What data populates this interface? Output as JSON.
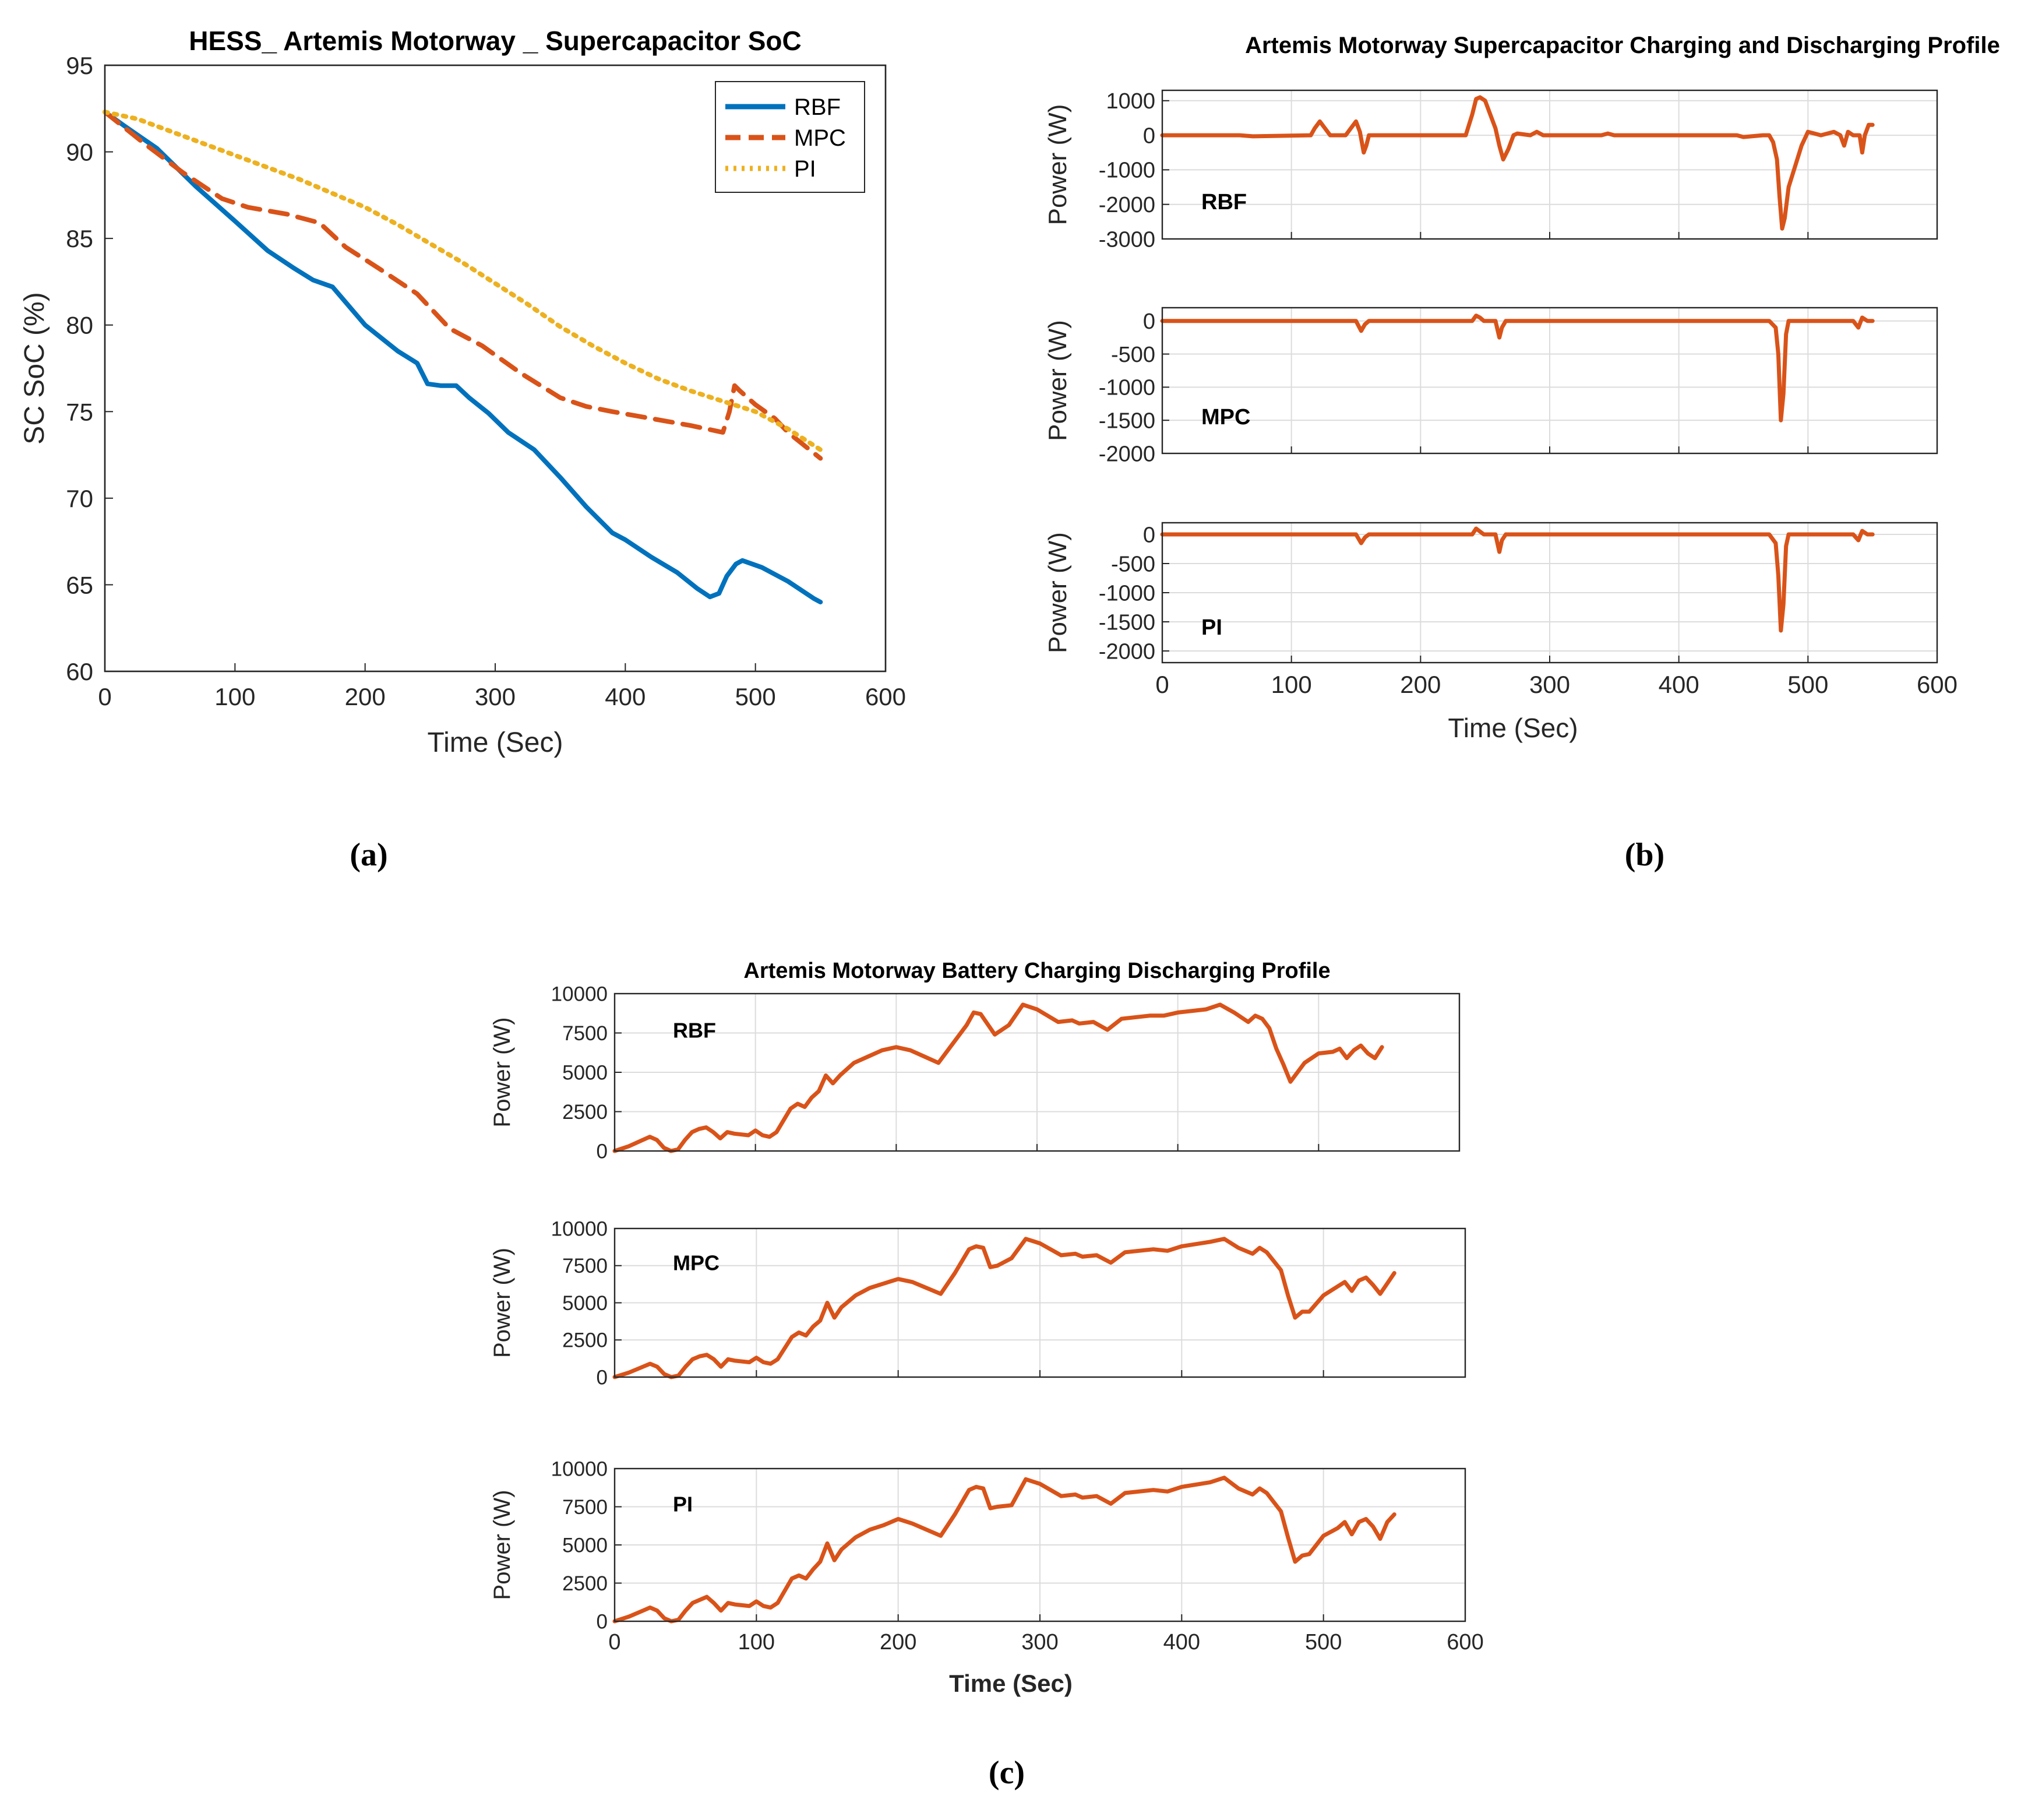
{
  "captions": {
    "a": "(a)",
    "b": "(b)",
    "c": "(c)"
  },
  "colors": {
    "rbf": "#0072BD",
    "mpc": "#D95319",
    "pi": "#EDB120",
    "profile": "#D95319"
  },
  "chart_data": [
    {
      "id": "a",
      "type": "line",
      "title": "HESS_ Artemis Motorway _ Supercapacitor SoC",
      "xlabel": "Time (Sec)",
      "ylabel": "SC SoC (%)",
      "xlim": [
        0,
        600
      ],
      "ylim": [
        60,
        95
      ],
      "xticks": [
        0,
        100,
        200,
        300,
        400,
        500,
        600
      ],
      "yticks": [
        60,
        65,
        70,
        75,
        80,
        85,
        90,
        95
      ],
      "grid": true,
      "legend": "top-right",
      "series": [
        {
          "name": "RBF",
          "color": "#0072BD",
          "dash": "solid",
          "x": [
            0,
            15,
            40,
            70,
            100,
            125,
            145,
            160,
            175,
            200,
            225,
            240,
            248,
            258,
            270,
            280,
            295,
            310,
            330,
            350,
            370,
            390,
            400,
            420,
            440,
            455,
            465,
            472,
            478,
            485,
            490,
            505,
            515,
            525,
            535,
            545,
            550
          ],
          "y": [
            92.3,
            91.5,
            90.2,
            88.0,
            86.0,
            84.3,
            83.3,
            82.6,
            82.2,
            80.0,
            78.5,
            77.8,
            76.6,
            76.5,
            76.5,
            75.8,
            74.9,
            73.8,
            72.8,
            71.2,
            69.5,
            68.0,
            67.6,
            66.6,
            65.7,
            64.8,
            64.3,
            64.5,
            65.5,
            66.2,
            66.4,
            66.0,
            65.6,
            65.2,
            64.7,
            64.2,
            64.0
          ]
        },
        {
          "name": "MPC",
          "color": "#D95319",
          "dash": "dash",
          "x": [
            0,
            30,
            60,
            90,
            110,
            140,
            165,
            185,
            210,
            240,
            265,
            290,
            320,
            350,
            370,
            390,
            420,
            450,
            475,
            480,
            484,
            488,
            500,
            515,
            525,
            535,
            550
          ],
          "y": [
            92.3,
            90.5,
            88.8,
            87.3,
            86.8,
            86.4,
            85.9,
            84.5,
            83.3,
            81.8,
            79.8,
            78.8,
            77.2,
            75.8,
            75.3,
            75.0,
            74.6,
            74.2,
            73.8,
            75.0,
            76.5,
            76.2,
            75.4,
            74.6,
            73.8,
            73.2,
            72.3
          ]
        },
        {
          "name": "PI",
          "color": "#EDB120",
          "dash": "dot",
          "x": [
            0,
            25,
            50,
            75,
            100,
            125,
            150,
            175,
            200,
            225,
            250,
            275,
            300,
            325,
            350,
            375,
            400,
            425,
            450,
            475,
            500,
            525,
            550
          ],
          "y": [
            92.3,
            91.9,
            91.2,
            90.5,
            89.8,
            89.1,
            88.4,
            87.6,
            86.8,
            85.8,
            84.7,
            83.6,
            82.4,
            81.2,
            79.9,
            78.8,
            77.8,
            76.9,
            76.2,
            75.6,
            75.0,
            74.0,
            72.8
          ]
        }
      ]
    },
    {
      "id": "b",
      "type": "line",
      "title": "Artemis Motorway Supercapacitor Charging and Discharging Profile",
      "xlabel": "Time (Sec)",
      "ylabel": "Power (W)",
      "xlim": [
        0,
        600
      ],
      "xticks": [
        0,
        100,
        200,
        300,
        400,
        500,
        600
      ],
      "grid": true,
      "subplots": [
        {
          "label": "RBF",
          "ylim": [
            -3000,
            1300
          ],
          "yticks": [
            -3000,
            -2000,
            -1000,
            0,
            1000
          ],
          "color": "#D95319",
          "x": [
            0,
            60,
            70,
            115,
            118,
            122,
            126,
            130,
            142,
            146,
            150,
            153,
            156,
            158,
            160,
            235,
            240,
            243,
            246,
            250,
            254,
            258,
            261,
            264,
            268,
            272,
            275,
            285,
            290,
            295,
            300,
            340,
            345,
            350,
            445,
            450,
            465,
            470,
            473,
            476,
            478,
            480,
            482,
            485,
            490,
            495,
            500,
            505,
            510,
            520,
            525,
            528,
            531,
            535,
            540,
            542,
            544,
            547,
            550
          ],
          "y": [
            0,
            0,
            -30,
            0,
            200,
            400,
            200,
            0,
            0,
            200,
            400,
            100,
            -500,
            -300,
            0,
            0,
            600,
            1050,
            1100,
            1000,
            600,
            200,
            -300,
            -700,
            -400,
            0,
            50,
            0,
            100,
            0,
            0,
            0,
            50,
            0,
            0,
            -50,
            0,
            0,
            -200,
            -700,
            -1800,
            -2700,
            -2400,
            -1500,
            -900,
            -300,
            100,
            50,
            0,
            100,
            0,
            -300,
            100,
            0,
            0,
            -500,
            0,
            300,
            300
          ]
        },
        {
          "label": "MPC",
          "ylim": [
            -2000,
            200
          ],
          "yticks": [
            -2000,
            -1500,
            -1000,
            -500,
            0
          ],
          "color": "#D95319",
          "x": [
            0,
            150,
            154,
            157,
            160,
            240,
            243,
            246,
            249,
            258,
            261,
            263,
            266,
            470,
            475,
            477,
            479,
            481,
            483,
            485,
            490,
            535,
            539,
            542,
            546,
            550
          ],
          "y": [
            0,
            0,
            -150,
            -50,
            0,
            0,
            80,
            50,
            0,
            0,
            -250,
            -100,
            0,
            0,
            -100,
            -500,
            -1500,
            -1100,
            -200,
            0,
            0,
            0,
            -100,
            50,
            0,
            0
          ]
        },
        {
          "label": "PI",
          "ylim": [
            -2200,
            200
          ],
          "yticks": [
            -2000,
            -1500,
            -1000,
            -500,
            0
          ],
          "color": "#D95319",
          "x": [
            0,
            150,
            154,
            157,
            160,
            240,
            243,
            246,
            249,
            258,
            261,
            263,
            266,
            470,
            475,
            477,
            479,
            481,
            483,
            485,
            490,
            535,
            539,
            542,
            546,
            550
          ],
          "y": [
            0,
            0,
            -150,
            -50,
            0,
            0,
            100,
            50,
            0,
            0,
            -300,
            -100,
            0,
            0,
            -150,
            -700,
            -1650,
            -1200,
            -200,
            0,
            0,
            0,
            -100,
            60,
            0,
            0
          ]
        }
      ]
    },
    {
      "id": "c",
      "type": "line",
      "title": "Artemis Motorway Battery Charging Discharging Profile",
      "xlabel": "Time (Sec)",
      "ylabel": "Power (W)",
      "xlim": [
        0,
        600
      ],
      "xticks": [
        0,
        100,
        200,
        300,
        400,
        500,
        600
      ],
      "grid": true,
      "subplots": [
        {
          "label": "RBF",
          "ylim": [
            0,
            10000
          ],
          "yticks": [
            0,
            2500,
            5000,
            7500,
            10000
          ],
          "color": "#D95319",
          "x": [
            0,
            10,
            20,
            25,
            30,
            35,
            40,
            45,
            50,
            55,
            60,
            65,
            70,
            75,
            80,
            85,
            95,
            100,
            105,
            110,
            115,
            125,
            130,
            135,
            140,
            145,
            150,
            155,
            160,
            170,
            180,
            190,
            200,
            210,
            220,
            230,
            240,
            250,
            255,
            260,
            270,
            280,
            290,
            300,
            315,
            325,
            330,
            340,
            350,
            360,
            380,
            390,
            400,
            420,
            430,
            440,
            450,
            455,
            460,
            465,
            470,
            475,
            480,
            490,
            500,
            510,
            515,
            520,
            525,
            530,
            535,
            540,
            545
          ],
          "y": [
            0,
            300,
            700,
            900,
            700,
            200,
            0,
            100,
            700,
            1200,
            1400,
            1500,
            1200,
            800,
            1200,
            1100,
            1000,
            1300,
            1000,
            900,
            1200,
            2700,
            3000,
            2800,
            3400,
            3800,
            4800,
            4300,
            4800,
            5600,
            6000,
            6400,
            6600,
            6400,
            6000,
            5600,
            6800,
            8000,
            8800,
            8700,
            7400,
            8000,
            9300,
            9000,
            8200,
            8300,
            8100,
            8200,
            7700,
            8400,
            8600,
            8600,
            8800,
            9000,
            9300,
            8800,
            8200,
            8600,
            8400,
            7800,
            6500,
            5500,
            4400,
            5600,
            6200,
            6300,
            6500,
            5900,
            6400,
            6700,
            6200,
            5900,
            6600
          ]
        },
        {
          "label": "MPC",
          "ylim": [
            0,
            10000
          ],
          "yticks": [
            0,
            2500,
            5000,
            7500,
            10000
          ],
          "color": "#D95319",
          "x": [
            0,
            10,
            20,
            25,
            30,
            35,
            40,
            45,
            50,
            55,
            60,
            65,
            70,
            75,
            80,
            85,
            95,
            100,
            105,
            110,
            115,
            125,
            130,
            135,
            140,
            145,
            150,
            155,
            160,
            170,
            180,
            190,
            200,
            210,
            220,
            230,
            240,
            250,
            255,
            260,
            265,
            270,
            280,
            290,
            300,
            315,
            325,
            330,
            340,
            350,
            360,
            380,
            390,
            400,
            420,
            430,
            440,
            450,
            455,
            460,
            465,
            470,
            475,
            480,
            485,
            490,
            500,
            510,
            515,
            520,
            525,
            530,
            535,
            540,
            545,
            550
          ],
          "y": [
            0,
            300,
            700,
            900,
            700,
            200,
            0,
            100,
            700,
            1200,
            1400,
            1500,
            1200,
            700,
            1200,
            1100,
            1000,
            1300,
            1000,
            900,
            1200,
            2700,
            3000,
            2800,
            3400,
            3800,
            5000,
            4000,
            4700,
            5500,
            6000,
            6300,
            6600,
            6400,
            6000,
            5600,
            7000,
            8600,
            8800,
            8700,
            7400,
            7500,
            8000,
            9300,
            9000,
            8200,
            8300,
            8100,
            8200,
            7700,
            8400,
            8600,
            8500,
            8800,
            9100,
            9300,
            8700,
            8300,
            8700,
            8400,
            7800,
            7200,
            5500,
            4000,
            4400,
            4400,
            5500,
            6100,
            6400,
            5800,
            6500,
            6700,
            6200,
            5600,
            6300,
            7000
          ]
        },
        {
          "label": "PI",
          "ylim": [
            0,
            10000
          ],
          "yticks": [
            0,
            2500,
            5000,
            7500,
            10000
          ],
          "color": "#D95319",
          "x": [
            0,
            10,
            20,
            25,
            30,
            35,
            40,
            45,
            50,
            55,
            60,
            65,
            70,
            75,
            80,
            85,
            95,
            100,
            105,
            110,
            115,
            125,
            130,
            135,
            140,
            145,
            150,
            155,
            160,
            170,
            180,
            190,
            200,
            210,
            220,
            230,
            240,
            250,
            255,
            260,
            265,
            270,
            280,
            290,
            300,
            315,
            325,
            330,
            340,
            350,
            360,
            380,
            390,
            400,
            420,
            430,
            440,
            450,
            455,
            460,
            465,
            470,
            475,
            480,
            485,
            490,
            500,
            510,
            515,
            520,
            525,
            530,
            535,
            540,
            545,
            550
          ],
          "y": [
            0,
            300,
            700,
            900,
            700,
            200,
            0,
            100,
            700,
            1200,
            1400,
            1600,
            1200,
            700,
            1200,
            1100,
            1000,
            1300,
            1000,
            900,
            1200,
            2800,
            3000,
            2800,
            3400,
            3900,
            5100,
            4000,
            4700,
            5500,
            6000,
            6300,
            6700,
            6400,
            6000,
            5600,
            7000,
            8600,
            8800,
            8700,
            7400,
            7500,
            7600,
            9300,
            9000,
            8200,
            8300,
            8100,
            8200,
            7700,
            8400,
            8600,
            8500,
            8800,
            9100,
            9400,
            8700,
            8300,
            8700,
            8400,
            7800,
            7200,
            5500,
            3900,
            4300,
            4400,
            5600,
            6100,
            6500,
            5700,
            6500,
            6700,
            6200,
            5400,
            6500,
            7000
          ]
        }
      ]
    }
  ]
}
